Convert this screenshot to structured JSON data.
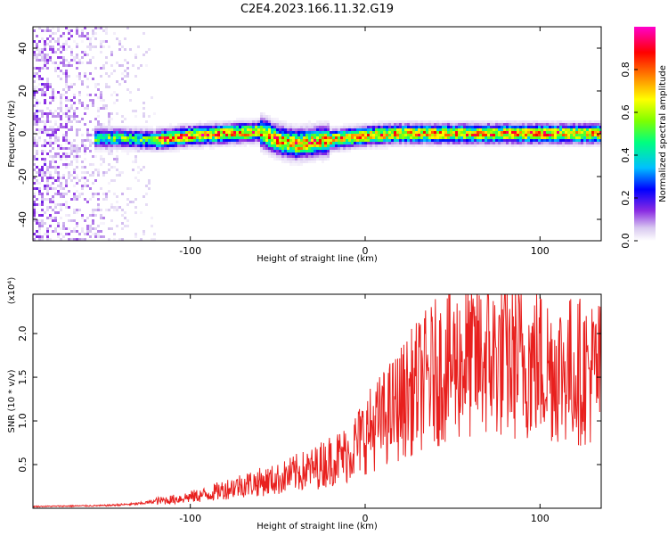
{
  "figure": {
    "title": "C2E4.2023.166.11.32.G19"
  },
  "chart_data": [
    {
      "type": "heatmap",
      "xlabel": "Height of straight line (km)",
      "ylabel": "Frequency (Hz)",
      "xlim": [
        -190,
        135
      ],
      "ylim": [
        -50,
        50
      ],
      "x_ticks": [
        -100,
        0,
        100
      ],
      "y_ticks": [
        -40,
        -20,
        0,
        20,
        40
      ],
      "colorbar": {
        "label": "Normalized spectral amplitude",
        "range": [
          0.0,
          1.0
        ],
        "ticks": [
          0.0,
          0.2,
          0.4,
          0.6,
          0.8
        ],
        "colormap": [
          "#ffffff",
          "#d8c8f0",
          "#8a2be2",
          "#0000ff",
          "#00bfff",
          "#00ff7f",
          "#7fff00",
          "#ffff00",
          "#ff8c00",
          "#ff0000",
          "#ff00cc"
        ]
      },
      "signal_ridge": {
        "x": [
          -155,
          -140,
          -120,
          -100,
          -80,
          -60,
          -50,
          -40,
          -30,
          -20,
          0,
          20,
          40,
          60,
          80,
          100,
          120,
          135
        ],
        "frequency": [
          -2,
          -2,
          -3,
          -1,
          0,
          1,
          -3,
          -5,
          -4,
          -3,
          -1,
          0,
          0,
          0,
          0,
          0,
          0,
          0
        ]
      },
      "noise_region_x": [
        -190,
        -120
      ]
    },
    {
      "type": "line",
      "xlabel": "Height of straight line (km)",
      "ylabel": "SNR (10 * v/v)",
      "y_multiplier": "(x10⁴)",
      "xlim": [
        -190,
        135
      ],
      "ylim": [
        0,
        2.45
      ],
      "x_ticks": [
        -100,
        0,
        100
      ],
      "y_ticks": [
        0.5,
        1.0,
        1.5,
        2.0
      ],
      "series": [
        {
          "color": "#e8201e",
          "x": [
            -190,
            -150,
            -130,
            -120,
            -110,
            -100,
            -90,
            -80,
            -70,
            -60,
            -50,
            -40,
            -30,
            -20,
            -10,
            0,
            10,
            20,
            30,
            40,
            50,
            60,
            70,
            80,
            90,
            100,
            110,
            120,
            135
          ],
          "values": [
            0.02,
            0.03,
            0.05,
            0.08,
            0.1,
            0.13,
            0.16,
            0.22,
            0.27,
            0.3,
            0.33,
            0.4,
            0.45,
            0.55,
            0.62,
            0.85,
            1.02,
            1.2,
            1.4,
            1.55,
            1.65,
            1.7,
            1.72,
            1.7,
            1.68,
            1.65,
            1.6,
            1.58,
            1.55
          ]
        }
      ]
    }
  ]
}
